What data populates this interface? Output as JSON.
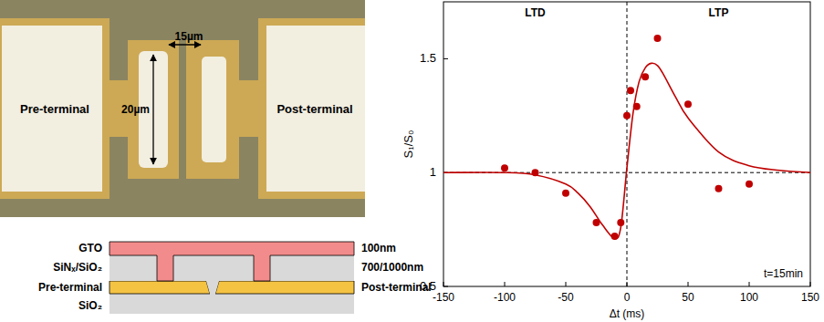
{
  "chart_data": {
    "type": "scatter",
    "xlabel": "Δt (ms)",
    "ylabel": "S₁/S₀",
    "xlim": [
      -150,
      150
    ],
    "ylim": [
      0.5,
      1.75
    ],
    "xticks": [
      -150,
      -100,
      -50,
      0,
      50,
      100,
      150
    ],
    "yticks": [
      0.5,
      1,
      1.5
    ],
    "grid": false,
    "annotations": [
      "LTD",
      "LTP",
      "t=15min"
    ],
    "reference_lines": [
      {
        "axis": "x",
        "value": 0,
        "line_style": "dashed"
      },
      {
        "axis": "y",
        "value": 1,
        "line_style": "dashed"
      }
    ],
    "series": [
      {
        "type": "scatter",
        "color": "#c00000",
        "marker": "circle",
        "x": [
          -100,
          -75,
          -50,
          -25,
          -10,
          -5,
          0,
          3,
          8,
          15,
          25,
          50,
          75,
          100
        ],
        "values": [
          1.02,
          1.0,
          0.91,
          0.78,
          0.72,
          0.78,
          1.25,
          1.36,
          1.29,
          1.42,
          1.59,
          1.3,
          0.93,
          0.95
        ]
      },
      {
        "type": "line",
        "color": "#c00000",
        "line_style": "solid",
        "x": [
          -150,
          -100,
          -75,
          -50,
          -40,
          -30,
          -20,
          -10,
          -5,
          0,
          5,
          10,
          15,
          20,
          25,
          30,
          40,
          50,
          75,
          100,
          125,
          150
        ],
        "values": [
          1.0,
          1.0,
          0.99,
          0.95,
          0.91,
          0.85,
          0.77,
          0.71,
          0.76,
          1.02,
          1.26,
          1.4,
          1.46,
          1.48,
          1.47,
          1.43,
          1.33,
          1.24,
          1.09,
          1.03,
          1.01,
          1.0
        ]
      }
    ]
  },
  "micrograph": {
    "labels": [
      "Pre-terminal",
      "Post-terminal"
    ],
    "dimensions": [
      "15µm",
      "20µm"
    ]
  },
  "cross_section": {
    "left_labels": [
      "GTO",
      "SiNₓ/SiO₂",
      "Pre-terminal",
      "SiO₂"
    ],
    "right_labels": [
      "100nm",
      "700/1000nm",
      "Post-terminal"
    ]
  }
}
